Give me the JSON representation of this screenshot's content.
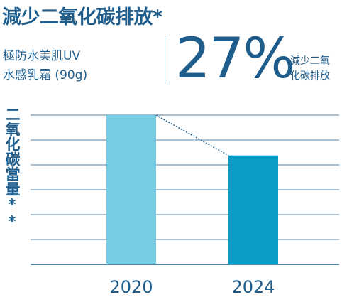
{
  "title": "減少二氧化碳排放*",
  "product": {
    "line1": "極防水美肌UV",
    "line2": "水感乳霜 (90g)"
  },
  "reduction": {
    "value": "27%",
    "label_line1": "減少二氧",
    "label_line2": "化碳排放"
  },
  "colors": {
    "text": "#1e5d8c",
    "bar_2020": "#76cde3",
    "bar_2024": "#0a9ec7",
    "grid": "#1e5d8c"
  },
  "chart_data": {
    "type": "bar",
    "categories": [
      "2020",
      "2024"
    ],
    "values": [
      100,
      73
    ],
    "ylabel": "二氧化碳當量**",
    "xlabel": "",
    "ylim": [
      0,
      100
    ],
    "grid": true,
    "connector": "dotted line from top of 2020 bar to top of 2024 bar"
  }
}
